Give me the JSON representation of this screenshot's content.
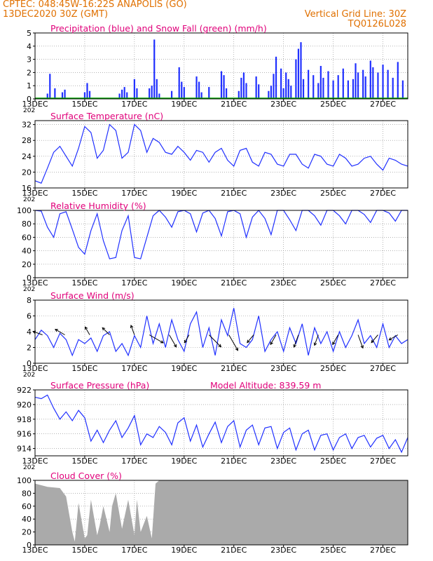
{
  "header": {
    "line1": "CPTEC:   048:45W-16:22S   ANAPOLIS (GO)",
    "line2": "13DEC2020 30Z (GMT)",
    "grid_note": "Vertical Grid Line: 30Z",
    "code": "TQ0126L028"
  },
  "x_axis": {
    "tick_labels": [
      "13DEC",
      "15DEC",
      "17DEC",
      "19DEC",
      "21DEC",
      "23DEC",
      "25DEC",
      "27DEC"
    ],
    "tick_days": [
      0,
      2,
      4,
      6,
      8,
      10,
      12,
      14
    ],
    "range_days": [
      0,
      15
    ],
    "year_fragment": "202"
  },
  "colors": {
    "series": "#2030ff",
    "title": "#e0007a",
    "header": "#e07000",
    "wind_arrow": "#000000",
    "cloud": "#aaaaaa",
    "snow": "#00aa00"
  },
  "chart_data": [
    {
      "id": "precip",
      "type": "bar",
      "title": "Precipitation (blue) and Snow Fall (green) (mm/h)",
      "ylim": [
        0,
        5
      ],
      "yticks": [
        0,
        1,
        2,
        3,
        4,
        5
      ],
      "x_days": [
        0.5,
        0.6,
        0.8,
        1.1,
        1.2,
        2.0,
        2.1,
        2.2,
        3.4,
        3.5,
        3.6,
        3.7,
        4.0,
        4.1,
        4.6,
        4.7,
        4.8,
        4.9,
        5.0,
        5.5,
        5.8,
        5.9,
        6.0,
        6.5,
        6.6,
        6.7,
        7.0,
        7.5,
        7.6,
        7.7,
        8.2,
        8.3,
        8.4,
        8.5,
        8.9,
        9.0,
        9.4,
        9.5,
        9.6,
        9.7,
        9.9,
        10.0,
        10.1,
        10.2,
        10.3,
        10.5,
        10.6,
        10.7,
        10.8,
        11.0,
        11.2,
        11.4,
        11.5,
        11.6,
        11.8,
        12.0,
        12.2,
        12.4,
        12.6,
        12.8,
        12.9,
        13.0,
        13.2,
        13.3,
        13.5,
        13.6,
        13.8,
        14.0,
        14.2,
        14.4,
        14.6,
        14.8
      ],
      "values": [
        0.4,
        1.9,
        0.8,
        0.5,
        0.7,
        0.5,
        1.2,
        0.6,
        0.4,
        0.7,
        0.9,
        0.5,
        1.5,
        0.8,
        0.8,
        1.0,
        4.5,
        1.5,
        0.4,
        0.6,
        2.4,
        1.3,
        0.9,
        1.7,
        1.3,
        0.5,
        0.9,
        2.1,
        1.8,
        0.8,
        0.6,
        1.6,
        2.0,
        1.2,
        1.7,
        1.1,
        0.6,
        1.0,
        1.9,
        3.2,
        2.3,
        0.8,
        2.0,
        1.5,
        1.0,
        3.0,
        3.8,
        4.3,
        1.5,
        2.2,
        1.8,
        1.2,
        2.5,
        1.6,
        2.1,
        1.4,
        1.8,
        2.3,
        1.4,
        1.5,
        2.7,
        2.0,
        2.2,
        1.7,
        2.9,
        2.4,
        2.0,
        2.6,
        2.2,
        1.6,
        2.8,
        1.4
      ]
    },
    {
      "id": "temp",
      "type": "line",
      "title": "Surface Temperature (nC)",
      "ylim": [
        16,
        33
      ],
      "yticks": [
        16,
        20,
        24,
        28,
        32
      ],
      "x_days": [
        0,
        0.25,
        0.5,
        0.75,
        1.0,
        1.25,
        1.5,
        1.75,
        2.0,
        2.25,
        2.5,
        2.75,
        3.0,
        3.25,
        3.5,
        3.75,
        4.0,
        4.25,
        4.5,
        4.75,
        5.0,
        5.25,
        5.5,
        5.75,
        6.0,
        6.25,
        6.5,
        6.75,
        7.0,
        7.25,
        7.5,
        7.75,
        8.0,
        8.25,
        8.5,
        8.75,
        9.0,
        9.25,
        9.5,
        9.75,
        10.0,
        10.25,
        10.5,
        10.75,
        11.0,
        11.25,
        11.5,
        11.75,
        12.0,
        12.25,
        12.5,
        12.75,
        13.0,
        13.25,
        13.5,
        13.75,
        14.0,
        14.25,
        14.5,
        14.75,
        15.0
      ],
      "values": [
        17.8,
        17.2,
        21.0,
        25.0,
        26.5,
        24.0,
        21.5,
        26.0,
        31.5,
        30.0,
        23.5,
        25.5,
        32.0,
        30.5,
        23.5,
        25.0,
        32.0,
        30.5,
        25.0,
        28.5,
        27.5,
        25.0,
        24.5,
        26.5,
        25.0,
        23.0,
        25.5,
        25.0,
        22.5,
        25.0,
        26.0,
        23.0,
        21.5,
        25.5,
        26.0,
        22.5,
        21.5,
        25.0,
        24.5,
        22.0,
        21.5,
        24.5,
        24.5,
        22.0,
        21.0,
        24.5,
        24.0,
        22.0,
        21.5,
        24.5,
        23.5,
        21.5,
        22.0,
        23.5,
        24.0,
        22.0,
        20.5,
        23.5,
        23.0,
        22.0,
        21.5
      ]
    },
    {
      "id": "rh",
      "type": "line",
      "title": "Relative Humidity (%)",
      "ylim": [
        0,
        100
      ],
      "yticks": [
        0,
        20,
        40,
        60,
        80,
        100
      ],
      "x_days": [
        0,
        0.25,
        0.5,
        0.75,
        1.0,
        1.25,
        1.5,
        1.75,
        2.0,
        2.25,
        2.5,
        2.75,
        3.0,
        3.25,
        3.5,
        3.75,
        4.0,
        4.25,
        4.5,
        4.75,
        5.0,
        5.25,
        5.5,
        5.75,
        6.0,
        6.25,
        6.5,
        6.75,
        7.0,
        7.25,
        7.5,
        7.75,
        8.0,
        8.25,
        8.5,
        8.75,
        9.0,
        9.25,
        9.5,
        9.75,
        10.0,
        10.25,
        10.5,
        10.75,
        11.0,
        11.25,
        11.5,
        11.75,
        12.0,
        12.25,
        12.5,
        12.75,
        13.0,
        13.25,
        13.5,
        13.75,
        14.0,
        14.25,
        14.5,
        14.75,
        15.0
      ],
      "values": [
        100,
        99,
        75,
        60,
        95,
        98,
        72,
        45,
        35,
        70,
        95,
        55,
        28,
        30,
        70,
        92,
        30,
        28,
        60,
        92,
        100,
        90,
        75,
        98,
        100,
        95,
        68,
        96,
        100,
        88,
        62,
        98,
        100,
        95,
        60,
        90,
        100,
        88,
        64,
        100,
        100,
        86,
        70,
        100,
        100,
        92,
        78,
        100,
        100,
        92,
        80,
        100,
        100,
        94,
        82,
        100,
        100,
        96,
        84,
        100,
        100
      ]
    },
    {
      "id": "wind",
      "type": "line",
      "title": "Surface Wind (m/s)",
      "ylim": [
        0,
        8
      ],
      "yticks": [
        0,
        2,
        4,
        6,
        8
      ],
      "x_days": [
        0,
        0.25,
        0.5,
        0.75,
        1.0,
        1.25,
        1.5,
        1.75,
        2.0,
        2.25,
        2.5,
        2.75,
        3.0,
        3.25,
        3.5,
        3.75,
        4.0,
        4.25,
        4.5,
        4.75,
        5.0,
        5.25,
        5.5,
        5.75,
        6.0,
        6.25,
        6.5,
        6.75,
        7.0,
        7.25,
        7.5,
        7.75,
        8.0,
        8.25,
        8.5,
        8.75,
        9.0,
        9.25,
        9.5,
        9.75,
        10.0,
        10.25,
        10.5,
        10.75,
        11.0,
        11.25,
        11.5,
        11.75,
        12.0,
        12.25,
        12.5,
        12.75,
        13.0,
        13.25,
        13.5,
        13.75,
        14.0,
        14.25,
        14.5,
        14.75,
        15.0
      ],
      "values": [
        3.0,
        4.2,
        3.5,
        2.0,
        3.8,
        3.0,
        1.0,
        3.0,
        2.5,
        3.2,
        1.5,
        3.5,
        4.0,
        1.5,
        2.5,
        1.0,
        3.5,
        2.0,
        6.0,
        2.5,
        5.0,
        2.0,
        5.5,
        3.0,
        1.5,
        5.0,
        6.5,
        2.0,
        4.5,
        1.0,
        5.5,
        3.5,
        7.0,
        2.5,
        2.0,
        3.0,
        6.0,
        1.5,
        3.0,
        4.0,
        1.5,
        4.5,
        2.5,
        5.0,
        1.0,
        4.5,
        2.5,
        4.0,
        1.5,
        4.0,
        2.0,
        3.5,
        5.5,
        2.5,
        3.5,
        2.0,
        5.0,
        2.0,
        3.5,
        2.5,
        3.0
      ],
      "arrows": [
        {
          "day": 0.3,
          "dir_deg": 250,
          "speed": 3.0
        },
        {
          "day": 1.2,
          "dir_deg": 240,
          "speed": 3.5
        },
        {
          "day": 2.2,
          "dir_deg": 210,
          "speed": 2.5
        },
        {
          "day": 3.0,
          "dir_deg": 225,
          "speed": 3.0
        },
        {
          "day": 4.0,
          "dir_deg": 200,
          "speed": 3.0
        },
        {
          "day": 4.6,
          "dir_deg": 60,
          "speed": 6.0
        },
        {
          "day": 5.4,
          "dir_deg": 30,
          "speed": 5.0
        },
        {
          "day": 6.2,
          "dir_deg": 330,
          "speed": 2.5
        },
        {
          "day": 7.0,
          "dir_deg": 45,
          "speed": 6.5
        },
        {
          "day": 7.8,
          "dir_deg": 30,
          "speed": 7.0
        },
        {
          "day": 8.8,
          "dir_deg": 320,
          "speed": 3.0
        },
        {
          "day": 9.7,
          "dir_deg": 330,
          "speed": 3.5
        },
        {
          "day": 10.6,
          "dir_deg": 340,
          "speed": 4.5
        },
        {
          "day": 11.4,
          "dir_deg": 340,
          "speed": 3.5
        },
        {
          "day": 12.2,
          "dir_deg": 330,
          "speed": 3.5
        },
        {
          "day": 13.0,
          "dir_deg": 20,
          "speed": 5.0
        },
        {
          "day": 13.8,
          "dir_deg": 320,
          "speed": 3.0
        },
        {
          "day": 14.6,
          "dir_deg": 300,
          "speed": 3.0
        }
      ]
    },
    {
      "id": "pressure",
      "type": "line",
      "title": "Surface Pressure (hPa)",
      "annotation": "Model Altitude: 839.59  m",
      "ylim": [
        913,
        922
      ],
      "yticks": [
        914,
        916,
        918,
        920,
        922
      ],
      "x_days": [
        0,
        0.25,
        0.5,
        0.75,
        1.0,
        1.25,
        1.5,
        1.75,
        2.0,
        2.25,
        2.5,
        2.75,
        3.0,
        3.25,
        3.5,
        3.75,
        4.0,
        4.25,
        4.5,
        4.75,
        5.0,
        5.25,
        5.5,
        5.75,
        6.0,
        6.25,
        6.5,
        6.75,
        7.0,
        7.25,
        7.5,
        7.75,
        8.0,
        8.25,
        8.5,
        8.75,
        9.0,
        9.25,
        9.5,
        9.75,
        10.0,
        10.25,
        10.5,
        10.75,
        11.0,
        11.25,
        11.5,
        11.75,
        12.0,
        12.25,
        12.5,
        12.75,
        13.0,
        13.25,
        13.5,
        13.75,
        14.0,
        14.25,
        14.5,
        14.75,
        15.0
      ],
      "values": [
        921.0,
        920.8,
        921.3,
        919.5,
        918.0,
        919.0,
        917.8,
        919.2,
        918.2,
        915.0,
        916.5,
        914.8,
        916.5,
        917.8,
        915.5,
        916.8,
        918.5,
        914.5,
        916.0,
        915.5,
        917.0,
        916.2,
        914.5,
        917.5,
        918.2,
        915.0,
        917.2,
        914.2,
        916.0,
        917.6,
        914.8,
        917.0,
        917.8,
        914.2,
        916.5,
        917.2,
        914.5,
        916.8,
        917.0,
        914.0,
        916.2,
        916.8,
        913.8,
        916.0,
        916.5,
        913.8,
        915.8,
        916.0,
        913.8,
        915.5,
        916.0,
        914.0,
        915.5,
        915.8,
        914.2,
        915.4,
        915.8,
        914.0,
        915.2,
        913.5,
        915.5
      ]
    },
    {
      "id": "cloud",
      "type": "area",
      "title": "Cloud Cover (%)",
      "ylim": [
        0,
        100
      ],
      "yticks": [
        0,
        20,
        40,
        60,
        80,
        100
      ],
      "x_days": [
        0,
        0.5,
        1.0,
        1.25,
        1.5,
        1.6,
        1.75,
        2.0,
        2.1,
        2.25,
        2.5,
        2.6,
        2.75,
        3.0,
        3.1,
        3.25,
        3.5,
        3.75,
        4.0,
        4.1,
        4.25,
        4.5,
        4.7,
        4.85,
        5.0,
        5.5,
        6.0,
        7.0,
        8.0,
        9.0,
        10.0,
        11.0,
        12.0,
        13.0,
        14.0,
        15.0
      ],
      "values": [
        95,
        90,
        88,
        75,
        20,
        5,
        65,
        10,
        15,
        70,
        15,
        30,
        60,
        20,
        60,
        80,
        25,
        70,
        15,
        70,
        20,
        45,
        10,
        95,
        100,
        100,
        100,
        100,
        100,
        100,
        100,
        100,
        100,
        100,
        100,
        100
      ]
    }
  ]
}
